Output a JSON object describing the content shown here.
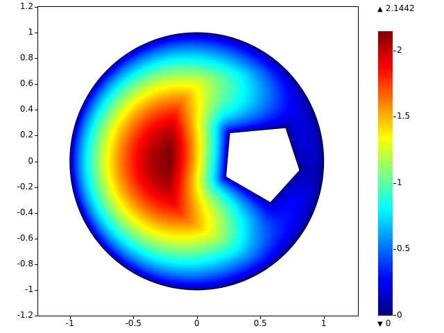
{
  "figure": {
    "background": "#ffffff",
    "frame_color": "#000000",
    "icons": {
      "triangle_up": "▲",
      "triangle_down": "▼"
    }
  },
  "chart_data": {
    "type": "heatmap",
    "title": "",
    "colormap": "jet",
    "vmin": 0,
    "vmax": 2.1442,
    "xlim": [
      -1.25,
      1.27
    ],
    "ylim": [
      -1.2,
      1.2
    ],
    "xticks": [
      -1,
      -0.5,
      0,
      0.5,
      1
    ],
    "yticks": [
      1.2,
      1,
      0.8,
      0.6,
      0.4,
      0.2,
      0,
      -0.2,
      -0.4,
      -0.6,
      -0.8,
      -1,
      -1.2
    ],
    "grid": false,
    "colorbar": {
      "min": 0,
      "max": 2.1442,
      "ticks": [
        0,
        0.5,
        1,
        1.5,
        2
      ],
      "position": "right",
      "max_annotation": "2.1442",
      "min_annotation": "0"
    },
    "domain": {
      "outer": {
        "shape": "circle",
        "center": [
          0,
          0
        ],
        "radius": 1
      },
      "hole": {
        "shape": "pentagon",
        "vertices": [
          [
            0.26,
            0.22
          ],
          [
            0.7,
            0.26
          ],
          [
            0.81,
            -0.07
          ],
          [
            0.58,
            -0.32
          ],
          [
            0.23,
            -0.12
          ]
        ]
      }
    },
    "field": {
      "peak_value": 2.1442,
      "peak_center": [
        -0.3,
        0
      ],
      "sigma": 0.7,
      "hole_falloff": 0.45,
      "flatness": 0.6,
      "boundary_value": 0
    }
  }
}
